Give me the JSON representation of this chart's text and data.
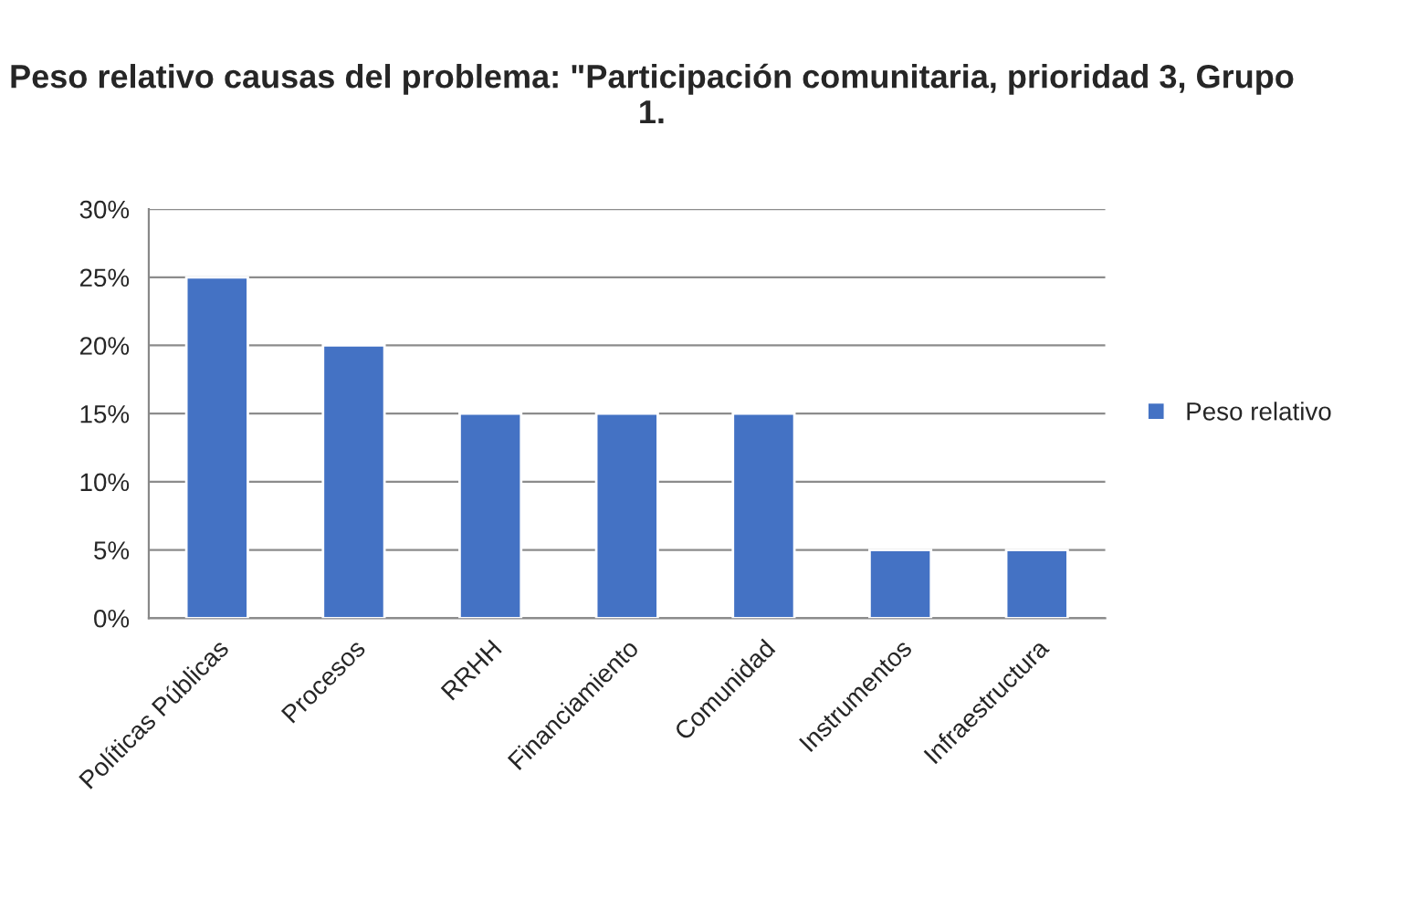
{
  "chart_data": {
    "type": "bar",
    "title": "Peso relativo causas del problema: \"Participación comunitaria, prioridad 3, Grupo 1.",
    "categories": [
      "Políticas Públicas",
      "Procesos",
      "RRHH",
      "Financiamiento",
      "Comunidad",
      "Instrumentos",
      "Infraestructura"
    ],
    "series": [
      {
        "name": "Peso relativo",
        "color": "#4472c4",
        "values": [
          25,
          20,
          15,
          15,
          15,
          5,
          5
        ]
      }
    ],
    "ylim": [
      0,
      30
    ],
    "yticks": [
      {
        "value": 0,
        "label": "0%"
      },
      {
        "value": 5,
        "label": "5%"
      },
      {
        "value": 10,
        "label": "10%"
      },
      {
        "value": 15,
        "label": "15%"
      },
      {
        "value": 20,
        "label": "20%"
      },
      {
        "value": 25,
        "label": "25%"
      },
      {
        "value": 30,
        "label": "30%"
      }
    ],
    "grid": "y",
    "legend": "right"
  }
}
